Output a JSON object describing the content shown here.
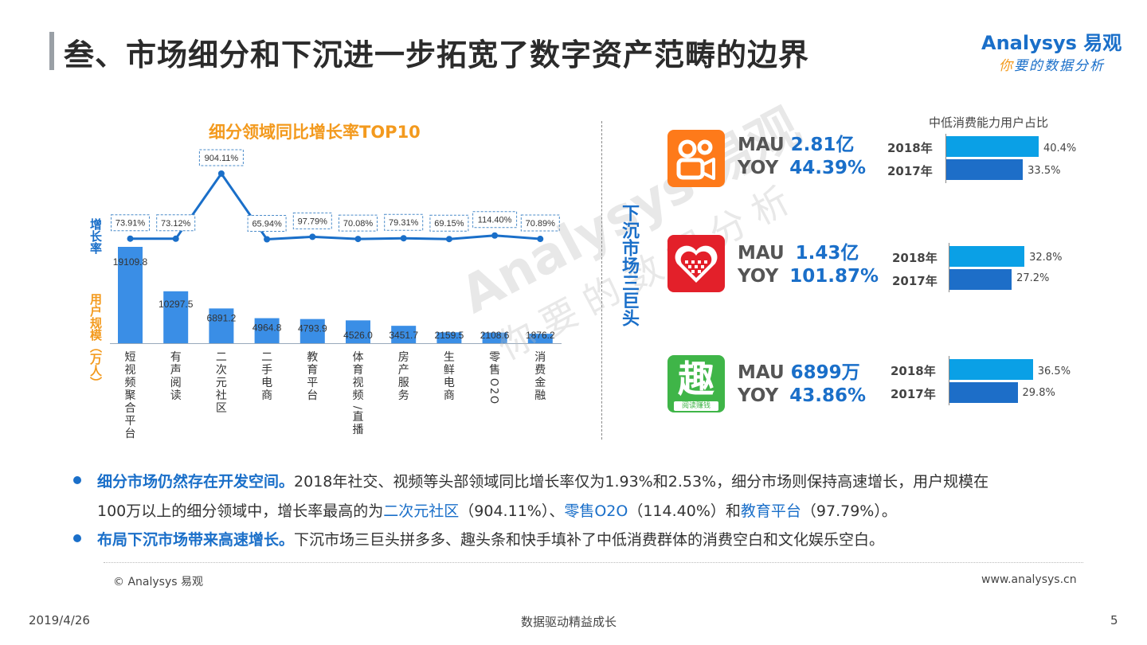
{
  "header": {
    "title": "叁、市场细分和下沉进一步拓宽了数字资产范畴的边界",
    "logo_main": "Analysys 易观",
    "logo_sub_first": "你",
    "logo_sub_rest": "要的数据分析"
  },
  "chart_data": {
    "type": "bar+line",
    "title": "细分领域同比增长率TOP10",
    "ylabel_rate": "增长率",
    "ylabel_users": "用户规模（万人）",
    "categories": [
      "短视频聚合平台",
      "有声阅读",
      "二次元社区",
      "二手电商",
      "教育平台",
      "体育视频/直播",
      "房产服务",
      "生鲜电商",
      "零售O2O",
      "消费金融"
    ],
    "series": [
      {
        "name": "增长率",
        "kind": "line",
        "values": [
          73.91,
          73.12,
          904.11,
          65.94,
          97.79,
          70.08,
          79.31,
          69.15,
          114.4,
          70.89
        ],
        "labels": [
          "73.91%",
          "73.12%",
          "904.11%",
          "65.94%",
          "97.79%",
          "70.08%",
          "79.31%",
          "69.15%",
          "114.40%",
          "70.89%"
        ]
      },
      {
        "name": "用户规模",
        "kind": "bar",
        "values": [
          19109.8,
          10297.5,
          6891.2,
          4964.8,
          4793.9,
          4526.0,
          3451.7,
          2159.5,
          2108.6,
          1876.2
        ],
        "labels": [
          "19109.8",
          "10297.5",
          "6891.2",
          "4964.8",
          "4793.9",
          "4526.0",
          "3451.7",
          "2159.5",
          "2108.6",
          "1876.2"
        ]
      }
    ]
  },
  "side_label": "下沉市场三巨头",
  "watermark": {
    "line1": "Analysys 易观",
    "line2": "你要的数据分析"
  },
  "bar_panel": {
    "title": "中低消费能力用户占比",
    "apps": [
      {
        "name": "快手",
        "mau_label": "MAU",
        "mau": "2.81亿",
        "yoy_label": "YOY",
        "yoy": "44.39%",
        "y2018_label": "2018年",
        "y2018": 40.4,
        "y2018_text": "40.4%",
        "y2017_label": "2017年",
        "y2017": 33.5,
        "y2017_text": "33.5%"
      },
      {
        "name": "拼多多",
        "mau_label": "MAU",
        "mau": "1.43亿",
        "yoy_label": "YOY",
        "yoy": "101.87%",
        "y2018_label": "2018年",
        "y2018": 32.8,
        "y2018_text": "32.8%",
        "y2017_label": "2017年",
        "y2017": 27.2,
        "y2017_text": "27.2%"
      },
      {
        "name": "趣头条",
        "icon_char": "趣",
        "icon_caption": "阅读赚钱",
        "mau_label": "MAU",
        "mau": "6899万",
        "yoy_label": "YOY",
        "yoy": "43.86%",
        "y2018_label": "2018年",
        "y2018": 36.5,
        "y2018_text": "36.5%",
        "y2017_label": "2017年",
        "y2017": 29.8,
        "y2017_text": "29.8%"
      }
    ]
  },
  "bullets": {
    "b1_bold": "细分市场仍然存在开发空间。",
    "b1_text": "2018年社交、视频等头部领域同比增长率仅为1.93%和2.53%，细分市场则保持高速增长，用户规模在",
    "b1_line2_a": "100万以上的细分领域中，增长率最高的为",
    "b1_hl1": "二次元社区",
    "b1_line2_b": "（904.11%）、",
    "b1_hl2": "零售O2O",
    "b1_line2_c": "（114.40%）和",
    "b1_hl3": "教育平台",
    "b1_line2_d": "（97.79%）。",
    "b2_bold": "布局下沉市场带来高速增长。",
    "b2_text": "下沉市场三巨头拼多多、趣头条和快手填补了中低消费群体的消费空白和文化娱乐空白。"
  },
  "footer": {
    "copyright": "© Analysys 易观",
    "website": "www.analysys.cn",
    "date": "2019/4/26",
    "center": "数据驱动精益成长",
    "page": "5"
  },
  "colors": {
    "accent_blue": "#1a6fc9",
    "orange": "#f39a1e",
    "bar_chart": "#3a8ee6",
    "bar_2018": "#0aa0e6",
    "bar_2017": "#1d6ec8"
  }
}
